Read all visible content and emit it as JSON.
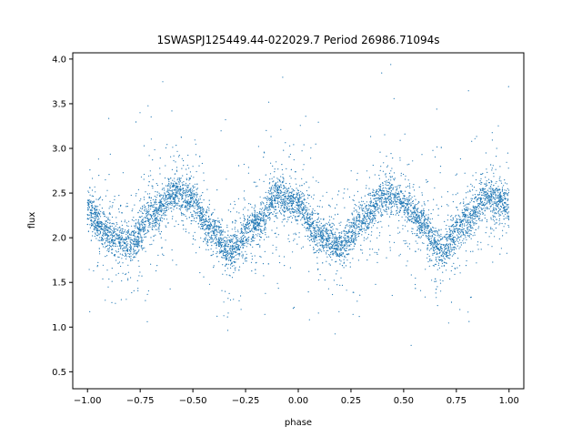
{
  "chart_data": {
    "type": "scatter",
    "title": "1SWASPJ125449.44-022029.7 Period 26986.71094s",
    "xlabel": "phase",
    "ylabel": "flux",
    "xlim": [
      -1.07,
      1.07
    ],
    "ylim": [
      0.31,
      4.07
    ],
    "xticks": [
      -1.0,
      -0.75,
      -0.5,
      -0.25,
      0.0,
      0.25,
      0.5,
      0.75,
      1.0
    ],
    "xtick_labels": [
      "−1.00",
      "−0.75",
      "−0.50",
      "−0.25",
      "0.00",
      "0.25",
      "0.50",
      "0.75",
      "1.00"
    ],
    "yticks": [
      0.5,
      1.0,
      1.5,
      2.0,
      2.5,
      3.0,
      3.5,
      4.0
    ],
    "ytick_labels": [
      "0.5",
      "1.0",
      "1.5",
      "2.0",
      "2.5",
      "3.0",
      "3.5",
      "4.0"
    ],
    "grid": false,
    "marker_color": "#1f77b4",
    "series": [
      {
        "x": [
          -1.0,
          -0.9,
          -0.8,
          -0.7,
          -0.58,
          -0.5,
          -0.42,
          -0.32,
          -0.2,
          -0.1,
          0.0,
          0.1,
          0.2,
          0.3,
          0.42,
          0.5,
          0.58,
          0.68,
          0.8,
          0.9,
          1.0
        ],
        "y": [
          2.3,
          2.05,
          1.92,
          2.25,
          2.52,
          2.4,
          2.1,
          1.85,
          2.15,
          2.47,
          2.35,
          2.02,
          1.9,
          2.2,
          2.48,
          2.38,
          2.15,
          1.85,
          2.2,
          2.48,
          2.38
        ]
      }
    ]
  }
}
